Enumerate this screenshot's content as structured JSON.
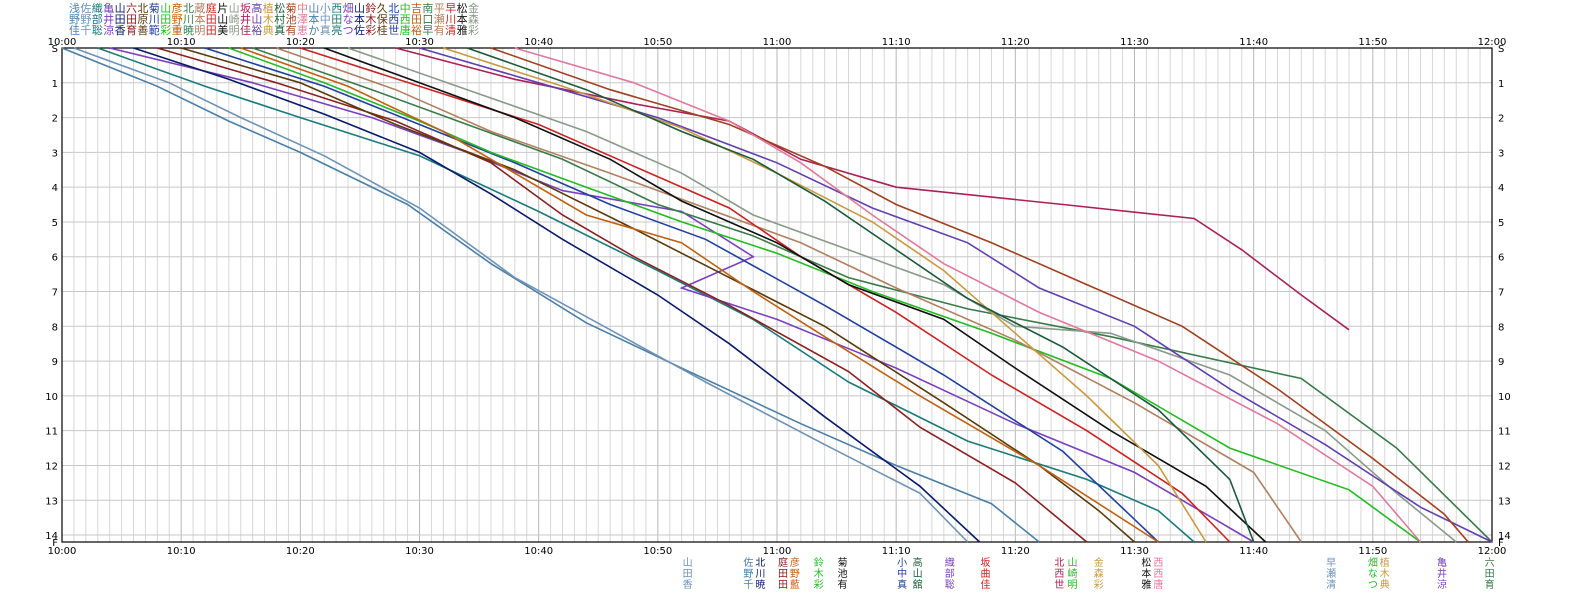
{
  "chart_data": {
    "type": "line",
    "title": "",
    "xlabel": "",
    "ylabel": "",
    "x_ticks": [
      "10:00",
      "10:10",
      "10:20",
      "10:30",
      "10:40",
      "10:50",
      "11:00",
      "11:10",
      "11:20",
      "11:30",
      "11:40",
      "11:50",
      "12:00"
    ],
    "xlim_minutes_from_first_tick": [
      0,
      120
    ],
    "y_ticks": [
      {
        "label": "S",
        "v": 0
      },
      {
        "label": "1",
        "v": 1
      },
      {
        "label": "2",
        "v": 2
      },
      {
        "label": "3",
        "v": 3
      },
      {
        "label": "4",
        "v": 4
      },
      {
        "label": "5",
        "v": 5
      },
      {
        "label": "6",
        "v": 6
      },
      {
        "label": "7",
        "v": 7
      },
      {
        "label": "8",
        "v": 8
      },
      {
        "label": "9",
        "v": 9
      },
      {
        "label": "10",
        "v": 10
      },
      {
        "label": "11",
        "v": 11
      },
      {
        "label": "12",
        "v": 12
      },
      {
        "label": "13",
        "v": 13
      },
      {
        "label": "14",
        "v": 14
      },
      {
        "label": "F",
        "v": 14.2
      }
    ],
    "grid": true,
    "legend_position": "top-left",
    "legend_rows": [
      "浅佐織亀山六北菊山彦北蔵庭片山坂高植松菊中山小西畑山鈴久北中吉南平早松金",
      "野野部井田田原川田野川本田山崎井山木村池澤本中田な本木保西西田口瀬川本森",
      "佳千聡涼香育善範彩重暁明田美明佳裕典真有恵か真亮つ佐彩桂世唐裕早有清雅彩"
    ],
    "series": [
      {
        "color": "#4a7fa8",
        "points": [
          [
            0,
            0
          ],
          [
            8,
            1.1
          ],
          [
            14,
            2.1
          ],
          [
            20,
            3.0
          ],
          [
            29,
            4.5
          ],
          [
            36,
            6.2
          ],
          [
            44,
            7.9
          ],
          [
            52,
            9.2
          ],
          [
            62,
            10.8
          ],
          [
            70,
            12.0
          ],
          [
            78,
            13.1
          ],
          [
            82,
            14.2
          ]
        ]
      },
      {
        "color": "#6f93b5",
        "points": [
          [
            1,
            0
          ],
          [
            9,
            1.0
          ],
          [
            15,
            2.0
          ],
          [
            22,
            3.1
          ],
          [
            30,
            4.6
          ],
          [
            38,
            6.6
          ],
          [
            46,
            8.1
          ],
          [
            54,
            9.6
          ],
          [
            64,
            11.4
          ],
          [
            72,
            12.8
          ],
          [
            76,
            14.2
          ]
        ]
      },
      {
        "color": "#1a7a7a",
        "points": [
          [
            3,
            0
          ],
          [
            12,
            1.1
          ],
          [
            20,
            2.0
          ],
          [
            30,
            3.1
          ],
          [
            40,
            4.7
          ],
          [
            50,
            6.4
          ],
          [
            58,
            7.8
          ],
          [
            66,
            9.6
          ],
          [
            76,
            11.3
          ],
          [
            86,
            12.4
          ],
          [
            92,
            13.3
          ],
          [
            95,
            14.2
          ]
        ]
      },
      {
        "color": "#7a3fbf",
        "points": [
          [
            4,
            0
          ],
          [
            16,
            1.0
          ],
          [
            26,
            2.0
          ],
          [
            34,
            3.0
          ],
          [
            42,
            4.1
          ],
          [
            52,
            4.7
          ],
          [
            58,
            6.0
          ],
          [
            52,
            6.9
          ],
          [
            60,
            7.8
          ],
          [
            70,
            9.2
          ],
          [
            80,
            10.8
          ],
          [
            90,
            12.2
          ],
          [
            97,
            13.6
          ],
          [
            100,
            14.2
          ]
        ]
      },
      {
        "color": "#0a1a6a",
        "points": [
          [
            6,
            0
          ],
          [
            14,
            0.9
          ],
          [
            22,
            1.9
          ],
          [
            30,
            3.0
          ],
          [
            36,
            4.2
          ],
          [
            42,
            5.5
          ],
          [
            50,
            7.1
          ],
          [
            56,
            8.5
          ],
          [
            64,
            10.6
          ],
          [
            72,
            12.6
          ],
          [
            77,
            14.2
          ]
        ]
      },
      {
        "color": "#8b2020",
        "points": [
          [
            8,
            0
          ],
          [
            18,
            1.0
          ],
          [
            28,
            2.1
          ],
          [
            36,
            3.3
          ],
          [
            42,
            4.8
          ],
          [
            48,
            6.0
          ],
          [
            56,
            7.4
          ],
          [
            66,
            9.3
          ],
          [
            72,
            10.9
          ],
          [
            80,
            12.5
          ],
          [
            86,
            14.2
          ]
        ]
      },
      {
        "color": "#5a3a0a",
        "points": [
          [
            10,
            0
          ],
          [
            20,
            1.0
          ],
          [
            28,
            2.2
          ],
          [
            38,
            3.5
          ],
          [
            48,
            5.2
          ],
          [
            56,
            6.6
          ],
          [
            64,
            8.0
          ],
          [
            74,
            10.2
          ],
          [
            82,
            12.0
          ],
          [
            87,
            13.3
          ],
          [
            90,
            14.2
          ]
        ]
      },
      {
        "color": "#2040a0",
        "points": [
          [
            12,
            0
          ],
          [
            22,
            1.1
          ],
          [
            30,
            2.2
          ],
          [
            38,
            3.3
          ],
          [
            46,
            4.5
          ],
          [
            54,
            5.5
          ],
          [
            64,
            7.4
          ],
          [
            74,
            9.4
          ],
          [
            84,
            11.6
          ],
          [
            92,
            14.2
          ]
        ]
      },
      {
        "color": "#22bb22",
        "points": [
          [
            14,
            0
          ],
          [
            22,
            1.0
          ],
          [
            30,
            2.1
          ],
          [
            36,
            3.0
          ],
          [
            44,
            4.0
          ],
          [
            52,
            5.0
          ],
          [
            60,
            5.9
          ],
          [
            68,
            7.0
          ],
          [
            78,
            8.2
          ],
          [
            88,
            9.5
          ],
          [
            98,
            11.5
          ],
          [
            108,
            12.7
          ],
          [
            114,
            14.2
          ]
        ]
      },
      {
        "color": "#c06010",
        "points": [
          [
            15,
            0
          ],
          [
            24,
            1.1
          ],
          [
            32,
            2.4
          ],
          [
            38,
            3.6
          ],
          [
            44,
            4.8
          ],
          [
            52,
            5.6
          ],
          [
            58,
            7.0
          ],
          [
            64,
            8.3
          ],
          [
            72,
            10.0
          ],
          [
            82,
            12.0
          ],
          [
            92,
            14.2
          ]
        ]
      },
      {
        "color": "#3a7a4a",
        "points": [
          [
            16,
            0
          ],
          [
            26,
            1.2
          ],
          [
            34,
            2.2
          ],
          [
            42,
            3.2
          ],
          [
            50,
            4.5
          ],
          [
            58,
            5.4
          ],
          [
            66,
            6.6
          ],
          [
            76,
            7.5
          ],
          [
            88,
            8.3
          ],
          [
            104,
            9.5
          ],
          [
            112,
            11.5
          ],
          [
            120,
            14.2
          ]
        ]
      },
      {
        "color": "#b08060",
        "points": [
          [
            18,
            0
          ],
          [
            28,
            1.2
          ],
          [
            36,
            2.4
          ],
          [
            46,
            3.6
          ],
          [
            54,
            4.6
          ],
          [
            62,
            5.6
          ],
          [
            70,
            6.9
          ],
          [
            80,
            8.4
          ],
          [
            90,
            10.2
          ],
          [
            100,
            12.2
          ],
          [
            104,
            14.2
          ]
        ]
      },
      {
        "color": "#cc2222",
        "points": [
          [
            20,
            0
          ],
          [
            30,
            1.1
          ],
          [
            40,
            2.2
          ],
          [
            48,
            3.4
          ],
          [
            56,
            4.6
          ],
          [
            62,
            6.0
          ],
          [
            70,
            7.6
          ],
          [
            78,
            9.4
          ],
          [
            86,
            11.0
          ],
          [
            94,
            12.8
          ],
          [
            98,
            14.2
          ]
        ]
      },
      {
        "color": "#101010",
        "points": [
          [
            22,
            0
          ],
          [
            30,
            1.0
          ],
          [
            38,
            2.0
          ],
          [
            46,
            3.2
          ],
          [
            52,
            4.4
          ],
          [
            60,
            5.6
          ],
          [
            66,
            6.8
          ],
          [
            74,
            7.8
          ],
          [
            80,
            9.2
          ],
          [
            88,
            11.0
          ],
          [
            96,
            12.6
          ],
          [
            101,
            14.2
          ]
        ]
      },
      {
        "color": "#8a9a8a",
        "points": [
          [
            24,
            0
          ],
          [
            34,
            1.2
          ],
          [
            44,
            2.4
          ],
          [
            52,
            3.6
          ],
          [
            58,
            4.8
          ],
          [
            66,
            5.8
          ],
          [
            74,
            6.8
          ],
          [
            80,
            8.0
          ],
          [
            88,
            8.2
          ],
          [
            98,
            9.4
          ],
          [
            106,
            11.0
          ],
          [
            112,
            12.8
          ],
          [
            117,
            14.2
          ]
        ]
      },
      {
        "color": "#aa2255",
        "points": [
          [
            28,
            0
          ],
          [
            38,
            0.9
          ],
          [
            48,
            1.6
          ],
          [
            56,
            2.1
          ],
          [
            62,
            3.2
          ],
          [
            70,
            4.0
          ],
          [
            84,
            4.5
          ],
          [
            95,
            4.9
          ],
          [
            99,
            5.8
          ],
          [
            104,
            7.1
          ],
          [
            108,
            8.1
          ]
        ]
      },
      {
        "color": "#6040b0",
        "points": [
          [
            30,
            0
          ],
          [
            40,
            1.0
          ],
          [
            50,
            2.0
          ],
          [
            60,
            3.3
          ],
          [
            68,
            4.6
          ],
          [
            76,
            5.6
          ],
          [
            82,
            6.9
          ],
          [
            90,
            8.0
          ],
          [
            98,
            9.8
          ],
          [
            106,
            11.4
          ],
          [
            114,
            13.2
          ],
          [
            120,
            14.2
          ]
        ]
      },
      {
        "color": "#c89a40",
        "points": [
          [
            32,
            0
          ],
          [
            42,
            1.1
          ],
          [
            52,
            2.3
          ],
          [
            60,
            3.6
          ],
          [
            68,
            5.0
          ],
          [
            74,
            6.4
          ],
          [
            80,
            8.2
          ],
          [
            86,
            10.0
          ],
          [
            92,
            12.0
          ],
          [
            96,
            14.2
          ]
        ]
      },
      {
        "color": "#1a5a3a",
        "points": [
          [
            34,
            0
          ],
          [
            44,
            1.2
          ],
          [
            52,
            2.4
          ],
          [
            58,
            3.2
          ],
          [
            64,
            4.4
          ],
          [
            70,
            5.8
          ],
          [
            76,
            7.2
          ],
          [
            84,
            8.6
          ],
          [
            92,
            10.4
          ],
          [
            98,
            12.4
          ],
          [
            100,
            14.2
          ]
        ]
      },
      {
        "color": "#a04020",
        "points": [
          [
            36,
            0
          ],
          [
            46,
            1.2
          ],
          [
            56,
            2.2
          ],
          [
            64,
            3.4
          ],
          [
            70,
            4.5
          ],
          [
            78,
            5.6
          ],
          [
            86,
            6.8
          ],
          [
            94,
            8.0
          ],
          [
            102,
            9.8
          ],
          [
            110,
            11.8
          ],
          [
            116,
            13.4
          ],
          [
            118,
            14.2
          ]
        ]
      },
      {
        "color": "#e07a9a",
        "points": [
          [
            38,
            0
          ],
          [
            48,
            1.0
          ],
          [
            56,
            2.1
          ],
          [
            62,
            3.3
          ],
          [
            68,
            4.8
          ],
          [
            74,
            6.2
          ],
          [
            82,
            7.6
          ],
          [
            92,
            9.0
          ],
          [
            102,
            10.8
          ],
          [
            110,
            12.6
          ],
          [
            114,
            14.2
          ]
        ]
      }
    ],
    "bottom_label_groups": [
      {
        "t": 52.5,
        "lines": [
          "山",
          "田",
          "香"
        ],
        "color": "#6f93b5"
      },
      {
        "t": 57.6,
        "lines": [
          "佐",
          "野",
          "千"
        ],
        "color": "#4a7fa8"
      },
      {
        "t": 58.6,
        "lines": [
          "北",
          "川",
          "暁"
        ],
        "color": "#0a1a6a"
      },
      {
        "t": 60.5,
        "lines": [
          "庭",
          "田",
          "田"
        ],
        "color": "#8b2020"
      },
      {
        "t": 61.5,
        "lines": [
          "彦",
          "野",
          "藍"
        ],
        "color": "#c06010"
      },
      {
        "t": 63.5,
        "lines": [
          "鈴",
          "木",
          "彩"
        ],
        "color": "#22bb22"
      },
      {
        "t": 65.5,
        "lines": [
          "菊",
          "池",
          "有"
        ],
        "color": "#101010"
      },
      {
        "t": 70.5,
        "lines": [
          "小",
          "中",
          "真"
        ],
        "color": "#2040a0"
      },
      {
        "t": 71.8,
        "lines": [
          "高",
          "山",
          "舘"
        ],
        "color": "#1a5a3a"
      },
      {
        "t": 74.5,
        "lines": [
          "織",
          "部",
          "聡"
        ],
        "color": "#7a3fbf"
      },
      {
        "t": 77.5,
        "lines": [
          "坂",
          "曲",
          "佳"
        ],
        "color": "#cc2222"
      },
      {
        "t": 83.7,
        "lines": [
          "北",
          "西",
          "世"
        ],
        "color": "#aa2255"
      },
      {
        "t": 84.8,
        "lines": [
          "山",
          "崎",
          "明"
        ],
        "color": "#22bb22"
      },
      {
        "t": 87.0,
        "lines": [
          "金",
          "森",
          "彩"
        ],
        "color": "#c89a40"
      },
      {
        "t": 91.0,
        "lines": [
          "松",
          "本",
          "雅"
        ],
        "color": "#101010"
      },
      {
        "t": 92.0,
        "lines": [
          "西",
          "西",
          "唐"
        ],
        "color": "#e07a9a"
      },
      {
        "t": 106.5,
        "lines": [
          "早",
          "瀬",
          "清"
        ],
        "color": "#6f93b5"
      },
      {
        "t": 110.0,
        "lines": [
          "畑",
          "な",
          "つ"
        ],
        "color": "#22bb22"
      },
      {
        "t": 111.0,
        "lines": [
          "植",
          "木",
          "典"
        ],
        "color": "#c89a40"
      },
      {
        "t": 115.8,
        "lines": [
          "亀",
          "井",
          "涼"
        ],
        "color": "#7a3fbf"
      },
      {
        "t": 119.8,
        "lines": [
          "六",
          "田",
          "育"
        ],
        "color": "#3a7a4a"
      }
    ]
  }
}
